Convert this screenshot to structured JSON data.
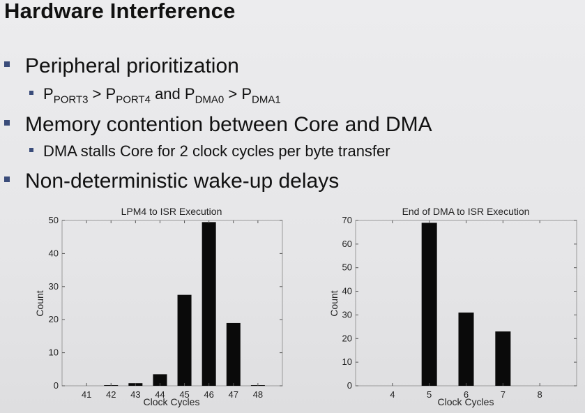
{
  "slide": {
    "title": "Hardware Interference",
    "bullets": [
      {
        "level": 1,
        "text": "Peripheral prioritization"
      },
      {
        "level": 2,
        "text": "P_PORT3 > P_PORT4 and P_DMA0 > P_DMA1"
      },
      {
        "level": 1,
        "text": "Memory contention between Core and DMA"
      },
      {
        "level": 2,
        "text": "DMA stalls Core for 2 clock cycles per byte transfer"
      },
      {
        "level": 1,
        "text": "Non-deterministic wake-up delays"
      }
    ],
    "sub1": {
      "p1": "P",
      "p1_sub": "PORT3",
      "gt1": " > ",
      "p2": "P",
      "p2_sub": "PORT4",
      "and": " and ",
      "p3": "P",
      "p3_sub": "DMA0",
      "gt2": " > ",
      "p4": "P",
      "p4_sub": "DMA1"
    },
    "bullet_color": "#3a4c7a"
  },
  "chart_data": [
    {
      "type": "bar",
      "title": "LPM4 to ISR Execution",
      "xlabel": "Clock Cycles",
      "ylabel": "Count",
      "categories": [
        "41",
        "42",
        "43",
        "44",
        "45",
        "46",
        "47",
        "48"
      ],
      "values": [
        0,
        0.2,
        0.8,
        3.5,
        27.5,
        49.5,
        19,
        0.2
      ],
      "ylim": [
        0,
        50
      ],
      "yticks": [
        0,
        10,
        20,
        30,
        40,
        50
      ],
      "grid": false
    },
    {
      "type": "bar",
      "title": "End of DMA to ISR Execution",
      "xlabel": "Clock Cycles",
      "ylabel": "Count",
      "categories": [
        "4",
        "5",
        "6",
        "7",
        "8"
      ],
      "values": [
        0,
        69,
        31,
        23,
        0
      ],
      "ylim": [
        0,
        70
      ],
      "yticks": [
        0,
        10,
        20,
        30,
        40,
        50,
        60,
        70
      ],
      "grid": false
    }
  ]
}
